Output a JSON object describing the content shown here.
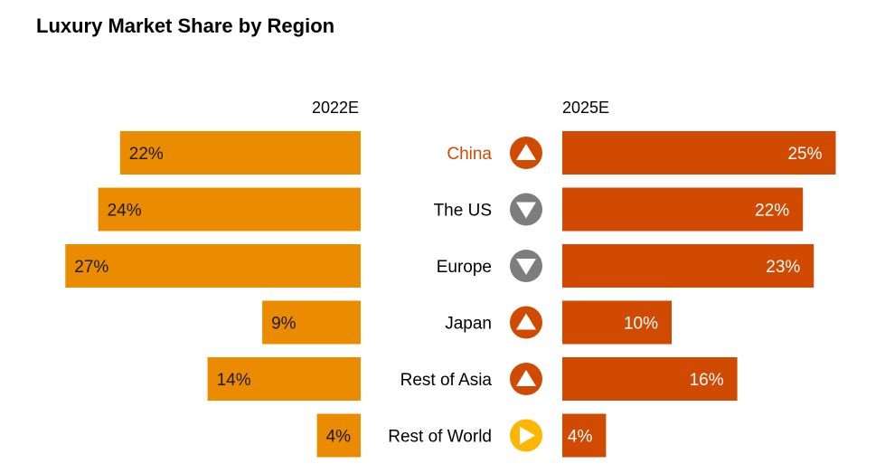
{
  "chart_data": {
    "type": "bar",
    "title": "Luxury Market Share by Region",
    "categories": [
      "China",
      "The US",
      "Europe",
      "Japan",
      "Rest of Asia",
      "Rest of World"
    ],
    "highlight_category": "China",
    "series": [
      {
        "name": "2022E",
        "values": [
          22,
          24,
          27,
          9,
          14,
          4
        ],
        "labels": [
          "22%",
          "24%",
          "27%",
          "9%",
          "14%",
          "4%"
        ],
        "color": "#EB8C00"
      },
      {
        "name": "2025E",
        "values": [
          25,
          22,
          23,
          10,
          16,
          4
        ],
        "labels": [
          "25%",
          "22%",
          "23%",
          "10%",
          "16%",
          "4%"
        ],
        "color": "#D04A02"
      }
    ],
    "trend": [
      "up",
      "down",
      "down",
      "up",
      "up",
      "flat"
    ],
    "trend_colors": {
      "up": "#D04A02",
      "down": "#7D7D7D",
      "flat": "#FFB600"
    },
    "unit": "%",
    "grid": false
  }
}
